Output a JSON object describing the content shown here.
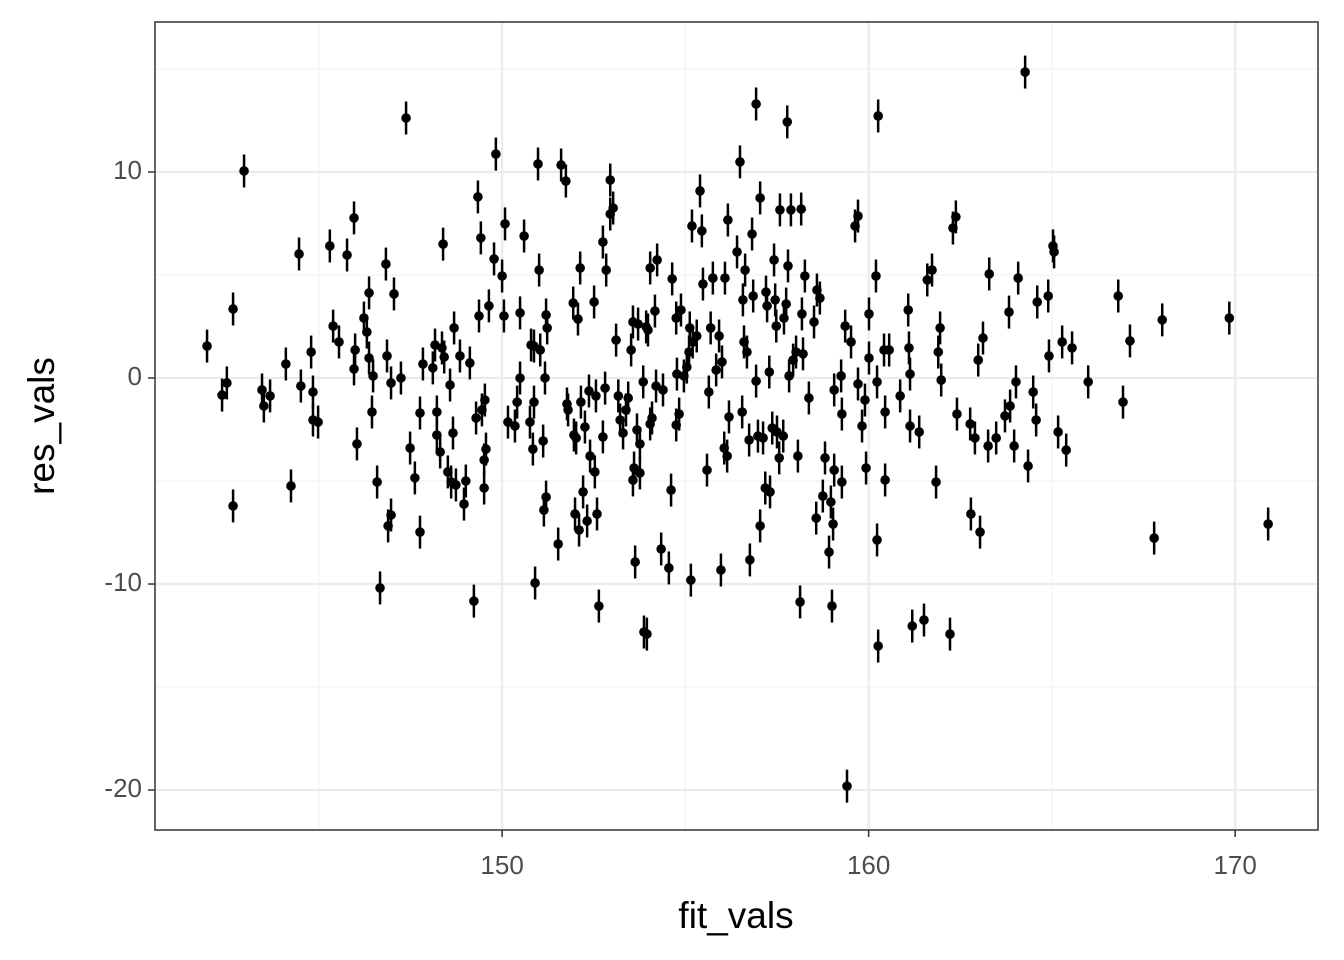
{
  "chart_data": {
    "type": "scatter",
    "x_label": "fit_vals",
    "y_label": "res_vals",
    "xlim": [
      140.53,
      172.26
    ],
    "ylim": [
      -21.94,
      17.28
    ],
    "xticks": [
      150,
      160,
      170
    ],
    "yticks": [
      -20,
      -10,
      0,
      10
    ],
    "grid": true,
    "color": "#000000",
    "error": 0.8,
    "series": [
      {
        "x": [
          141.95,
          142.36,
          142.49,
          142.66,
          142.66,
          142.96,
          143.45,
          143.5,
          143.67,
          144.1,
          144.24,
          144.46,
          144.51,
          144.79,
          144.84,
          144.84,
          144.98,
          145.3,
          145.39,
          145.55,
          145.77,
          145.96,
          145.96,
          145.99,
          146.04,
          146.23,
          146.31,
          146.37,
          146.37,
          146.45,
          146.48,
          146.59,
          146.67,
          146.83,
          146.86,
          146.89,
          146.97,
          146.97,
          147.05,
          147.24,
          147.38,
          147.49,
          147.62,
          147.76,
          147.76,
          147.84,
          148.11,
          148.17,
          148.22,
          148.22,
          148.31,
          148.36,
          148.39,
          148.42,
          148.52,
          148.58,
          148.61,
          148.66,
          148.69,
          148.74,
          148.85,
          148.96,
          149.01,
          149.12,
          149.23,
          149.29,
          149.34,
          149.37,
          149.42,
          149.45,
          149.51,
          149.51,
          149.53,
          149.56,
          149.64,
          149.78,
          149.83,
          150.0,
          150.08,
          150.05,
          150.16,
          150.35,
          150.41,
          150.49,
          150.49,
          150.6,
          150.76,
          150.79,
          150.84,
          150.87,
          150.9,
          150.98,
          150.87,
          151.01,
          151.04,
          151.12,
          151.14,
          151.17,
          151.2,
          151.2,
          151.23,
          151.53,
          151.61,
          151.74,
          151.77,
          151.8,
          151.94,
          151.96,
          151.99,
          152.02,
          152.07,
          152.1,
          152.13,
          152.15,
          152.21,
          152.26,
          152.32,
          152.37,
          152.4,
          152.51,
          152.53,
          152.56,
          152.59,
          152.64,
          152.75,
          152.75,
          152.81,
          152.84,
          152.95,
          152.95,
          153.03,
          153.11,
          153.17,
          153.22,
          153.3,
          153.38,
          153.44,
          153.52,
          153.57,
          153.57,
          153.6,
          153.63,
          153.68,
          153.71,
          153.76,
          153.76,
          153.85,
          153.87,
          153.93,
          153.95,
          153.98,
          154.04,
          154.04,
          154.09,
          154.17,
          154.2,
          154.23,
          154.34,
          154.39,
          154.55,
          154.61,
          154.64,
          154.75,
          154.75,
          154.77,
          154.83,
          154.88,
          154.96,
          155.04,
          155.1,
          155.12,
          155.15,
          155.18,
          155.2,
          155.31,
          155.4,
          155.45,
          155.48,
          155.59,
          155.64,
          155.69,
          155.75,
          155.84,
          155.92,
          155.97,
          156.0,
          156.06,
          156.08,
          156.14,
          156.16,
          156.19,
          156.41,
          156.49,
          156.55,
          156.57,
          156.6,
          156.63,
          156.68,
          156.74,
          156.76,
          156.82,
          156.85,
          156.93,
          156.93,
          156.98,
          157.04,
          157.04,
          157.12,
          157.18,
          157.2,
          157.23,
          157.29,
          157.31,
          157.37,
          157.42,
          157.45,
          157.48,
          157.5,
          157.56,
          157.58,
          157.67,
          157.69,
          157.75,
          157.78,
          157.8,
          157.83,
          157.88,
          157.94,
          158.02,
          158.07,
          158.13,
          158.16,
          158.18,
          158.21,
          158.26,
          158.37,
          158.51,
          158.57,
          158.59,
          158.67,
          158.75,
          158.81,
          158.92,
          158.97,
          159.0,
          159.03,
          159.06,
          159.06,
          159.25,
          159.27,
          159.27,
          159.36,
          159.41,
          159.52,
          159.63,
          159.71,
          159.71,
          159.82,
          159.9,
          159.93,
          160.01,
          160.01,
          160.2,
          160.23,
          160.23,
          160.26,
          160.26,
          160.42,
          160.45,
          160.45,
          160.56,
          160.86,
          161.08,
          161.1,
          161.13,
          161.13,
          161.19,
          161.38,
          161.51,
          161.6,
          161.73,
          161.84,
          161.9,
          161.95,
          161.98,
          162.22,
          162.3,
          162.38,
          162.41,
          162.77,
          162.79,
          162.9,
          162.99,
          163.04,
          163.12,
          163.26,
          163.29,
          163.48,
          163.72,
          163.83,
          163.86,
          163.97,
          164.02,
          164.08,
          164.27,
          164.35,
          164.49,
          164.57,
          164.6,
          164.9,
          164.92,
          165.03,
          165.06,
          165.17,
          165.28,
          165.39,
          165.55,
          165.99,
          166.81,
          166.94,
          167.13,
          167.79,
          168.01,
          169.84,
          170.9
        ],
        "values": [
          1.55,
          -0.83,
          -0.24,
          3.35,
          -6.21,
          10.05,
          -0.58,
          -1.36,
          -0.87,
          0.68,
          -5.24,
          6.02,
          -0.39,
          1.26,
          -0.68,
          -2.04,
          -2.14,
          6.41,
          2.52,
          1.75,
          5.97,
          7.77,
          0.44,
          1.36,
          -3.2,
          2.91,
          2.23,
          4.13,
          0.97,
          -1.65,
          0.1,
          -5.05,
          -10.19,
          5.53,
          1.07,
          -7.18,
          -6.65,
          -0.24,
          4.08,
          0.0,
          12.62,
          -3.4,
          -4.85,
          -1.7,
          -7.48,
          0.68,
          0.49,
          1.6,
          -1.65,
          -2.77,
          -3.59,
          1.46,
          6.5,
          1.02,
          -4.56,
          -0.34,
          -5.05,
          -2.67,
          2.43,
          -5.19,
          1.07,
          -6.12,
          -5.0,
          0.73,
          -10.83,
          -1.94,
          8.79,
          3.01,
          6.8,
          -1.55,
          -3.98,
          -5.34,
          -1.07,
          -3.45,
          3.5,
          5.78,
          10.87,
          4.95,
          7.48,
          3.01,
          -2.14,
          -2.33,
          -1.17,
          3.16,
          0.0,
          6.89,
          -2.14,
          1.6,
          -3.45,
          -1.17,
          -9.95,
          10.39,
          1.55,
          5.24,
          1.36,
          -3.06,
          -6.41,
          0.0,
          3.06,
          -5.78,
          2.43,
          -8.06,
          10.34,
          9.56,
          -1.26,
          -1.55,
          3.64,
          -2.77,
          -6.6,
          -2.91,
          2.86,
          -7.38,
          5.34,
          -1.17,
          -5.53,
          -2.38,
          -6.94,
          -0.63,
          -3.79,
          3.69,
          -4.56,
          -0.87,
          -6.6,
          -11.07,
          6.6,
          -2.86,
          -0.49,
          5.24,
          7.96,
          9.61,
          8.25,
          1.84,
          -0.87,
          -2.04,
          -2.67,
          -1.55,
          -0.97,
          1.36,
          2.72,
          -4.95,
          -4.37,
          -8.93,
          -2.52,
          2.62,
          -3.2,
          -4.61,
          -0.19,
          -12.33,
          2.48,
          -12.43,
          2.33,
          5.34,
          -2.23,
          -1.94,
          3.25,
          -0.39,
          5.73,
          -8.3,
          -0.58,
          -9.22,
          -5.44,
          4.81,
          -2.28,
          2.91,
          0.19,
          -1.75,
          3.3,
          0.1,
          0.53,
          1.26,
          2.43,
          -9.81,
          7.38,
          1.75,
          2.04,
          9.08,
          7.14,
          4.56,
          -4.47,
          -0.68,
          2.43,
          4.85,
          0.39,
          2.04,
          -9.32,
          0.78,
          -3.4,
          4.85,
          -3.79,
          7.67,
          -1.89,
          6.12,
          10.49,
          -1.65,
          3.79,
          1.75,
          5.24,
          1.26,
          -3.01,
          -8.83,
          6.99,
          3.98,
          13.3,
          -0.15,
          -2.82,
          -7.18,
          8.74,
          -2.91,
          -5.34,
          4.17,
          3.5,
          0.29,
          -5.53,
          -2.43,
          5.73,
          3.79,
          2.52,
          -2.62,
          -3.88,
          8.16,
          -2.82,
          2.91,
          3.59,
          12.43,
          5.44,
          0.1,
          8.16,
          0.87,
          1.26,
          -3.79,
          -10.87,
          8.2,
          3.11,
          1.17,
          4.95,
          -0.97,
          2.72,
          -6.8,
          4.27,
          3.88,
          -5.73,
          -3.88,
          -8.45,
          -6.02,
          -11.07,
          -7.09,
          -0.58,
          -4.47,
          0.1,
          -1.75,
          -5.05,
          2.52,
          -19.81,
          1.75,
          7.38,
          7.86,
          -0.29,
          -2.33,
          -1.07,
          -4.37,
          3.11,
          0.97,
          4.95,
          -0.19,
          -7.86,
          12.72,
          -13.01,
          1.36,
          -1.65,
          -4.95,
          1.36,
          -0.87,
          3.3,
          1.46,
          -2.33,
          0.19,
          -12.04,
          -2.62,
          -11.75,
          4.76,
          5.24,
          -5.05,
          1.26,
          2.43,
          -0.1,
          -12.43,
          7.28,
          7.82,
          -1.75,
          -2.23,
          -6.6,
          -2.91,
          0.87,
          -7.48,
          1.94,
          -3.3,
          5.05,
          -2.91,
          -1.84,
          3.2,
          -1.36,
          -3.3,
          -0.19,
          4.85,
          14.85,
          -4.27,
          -0.68,
          -2.04,
          3.69,
          3.98,
          1.07,
          6.41,
          6.12,
          -2.62,
          1.75,
          -3.5,
          1.46,
          -0.19,
          3.98,
          -1.17,
          1.8,
          -7.77,
          2.82,
          2.91,
          -7.09
        ]
      }
    ]
  }
}
